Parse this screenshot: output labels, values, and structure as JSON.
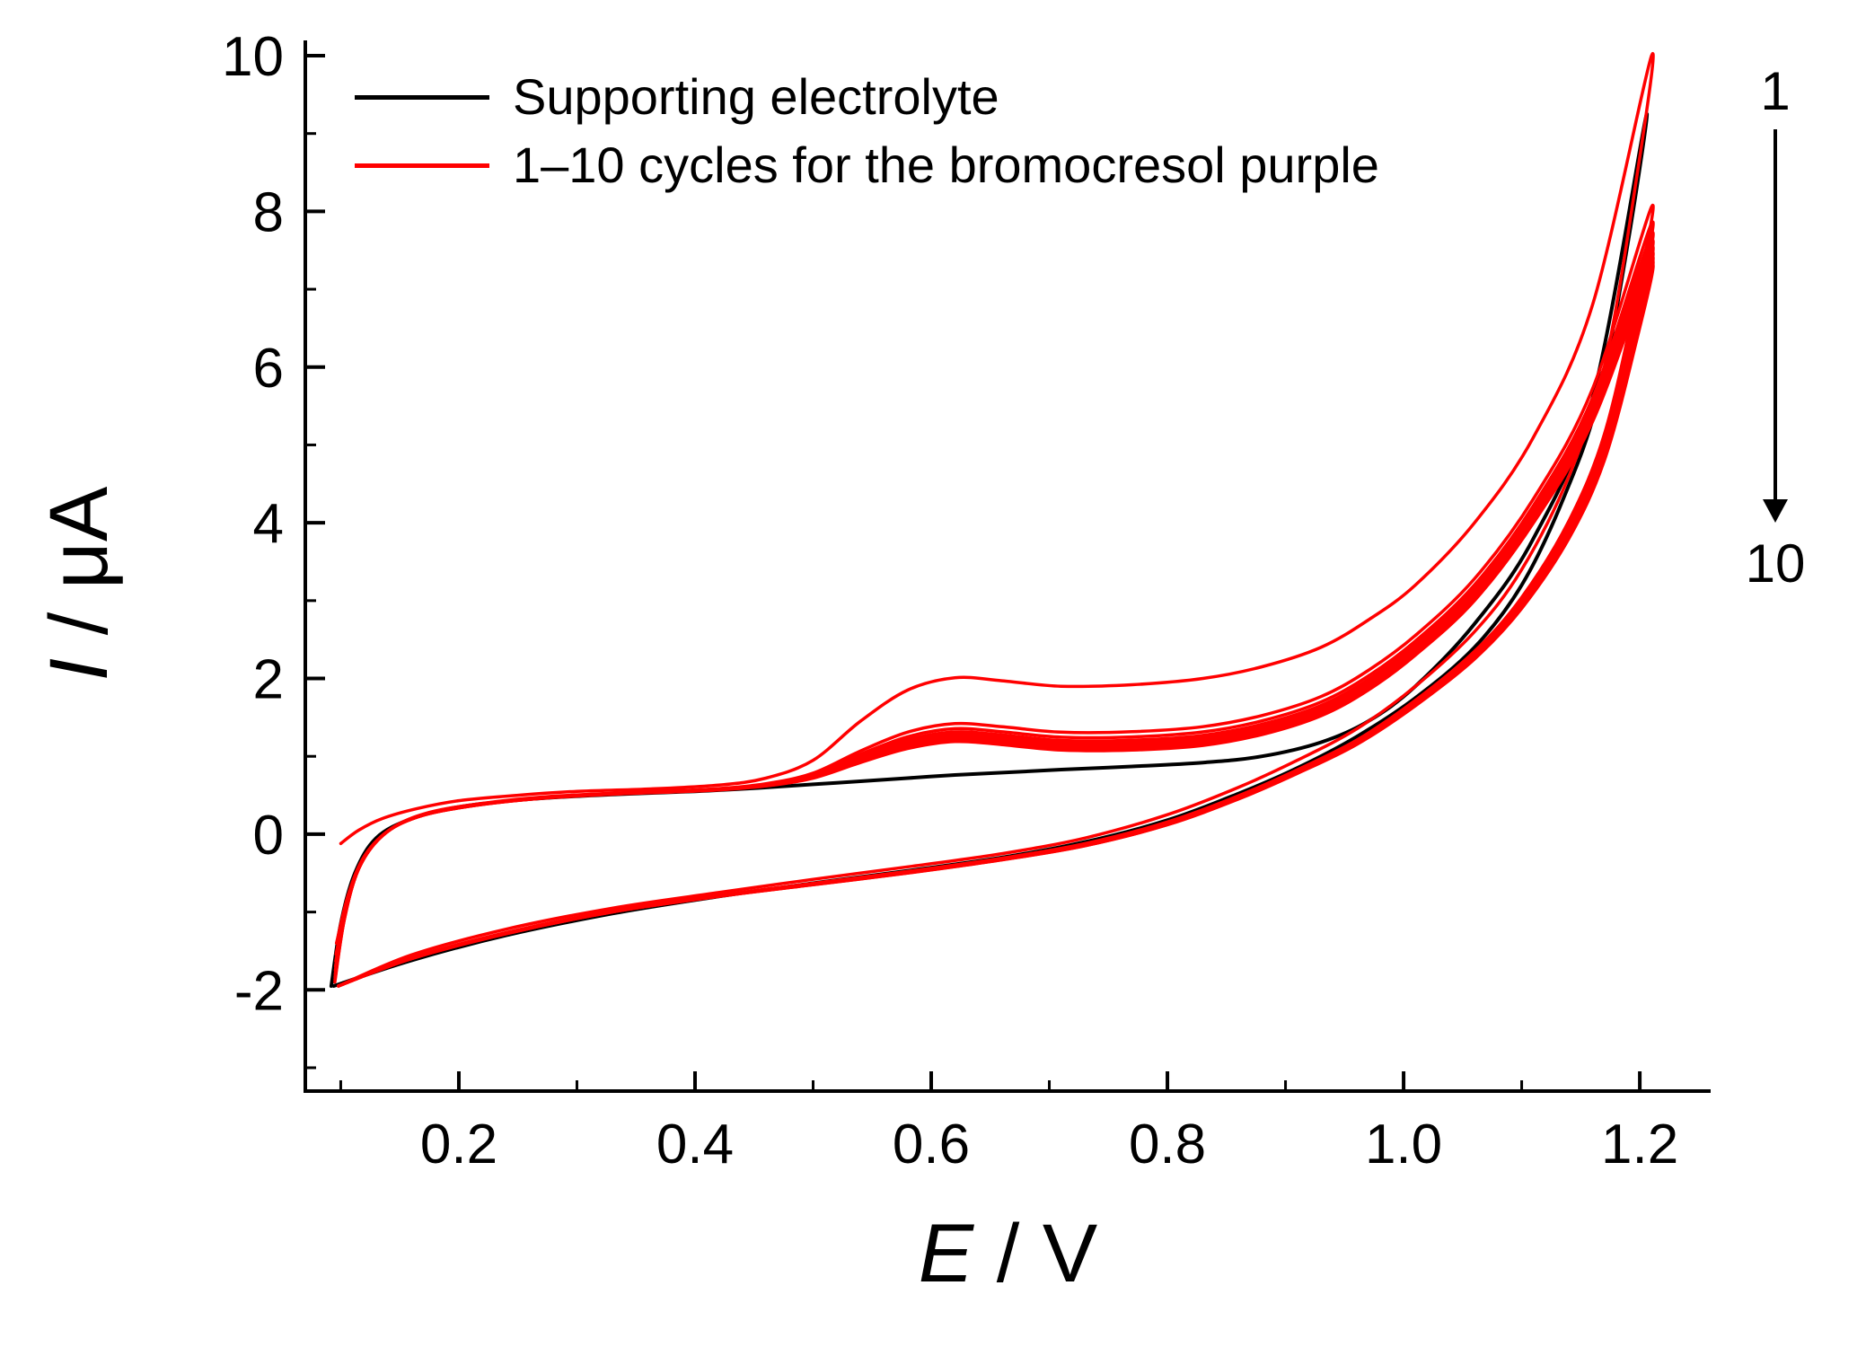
{
  "colors": {
    "background": "#ffffff",
    "axis": "#000000",
    "electrolyte": "#000000",
    "cycles": "#ff0000"
  },
  "chart_data": {
    "type": "line",
    "subtype": "cyclic-voltammogram",
    "title": "",
    "xlabel": "E / V",
    "ylabel": "I / μA",
    "xlabel_parts": {
      "symbol": "E",
      "units": " / V"
    },
    "ylabel_parts": {
      "symbol": "I",
      "units": " / μA"
    },
    "xlim": [
      0.07,
      1.26
    ],
    "ylim": [
      -3.3,
      10
    ],
    "x_ticks": [
      0.2,
      0.4,
      0.6,
      0.8,
      1.0,
      1.2
    ],
    "x_tick_labels": [
      "0.2",
      "0.4",
      "0.6",
      "0.8",
      "1.0",
      "1.2"
    ],
    "y_ticks": [
      -2,
      0,
      2,
      4,
      6,
      8,
      10
    ],
    "y_tick_labels": [
      "-2",
      "0",
      "2",
      "4",
      "6",
      "8",
      "10"
    ],
    "x_minor_step": 0.1,
    "y_minor_step": 1,
    "grid": false,
    "legend_position": "top-left-inside",
    "legend": [
      {
        "label": "Supporting electrolyte",
        "color": "#000000"
      },
      {
        "label": "1–10 cycles for the bromocresol purple",
        "color": "#ff0000"
      }
    ],
    "annotation": {
      "start_label": "1",
      "end_label": "10"
    },
    "series": [
      {
        "name": "Supporting electrolyte",
        "color": "#000000",
        "forward": [
          [
            0.092,
            -1.95
          ],
          [
            0.1,
            -1.15
          ],
          [
            0.112,
            -0.5
          ],
          [
            0.13,
            -0.05
          ],
          [
            0.16,
            0.2
          ],
          [
            0.2,
            0.35
          ],
          [
            0.26,
            0.45
          ],
          [
            0.33,
            0.51
          ],
          [
            0.4,
            0.55
          ],
          [
            0.46,
            0.6
          ],
          [
            0.5,
            0.64
          ],
          [
            0.54,
            0.68
          ],
          [
            0.58,
            0.72
          ],
          [
            0.62,
            0.76
          ],
          [
            0.66,
            0.79
          ],
          [
            0.71,
            0.83
          ],
          [
            0.77,
            0.87
          ],
          [
            0.83,
            0.92
          ],
          [
            0.88,
            1.0
          ],
          [
            0.93,
            1.18
          ],
          [
            0.97,
            1.45
          ],
          [
            1.01,
            1.9
          ],
          [
            1.06,
            2.7
          ],
          [
            1.11,
            3.8
          ],
          [
            1.16,
            5.6
          ],
          [
            1.205,
            9.2
          ]
        ],
        "reverse": [
          [
            1.205,
            9.2
          ],
          [
            1.19,
            7.6
          ],
          [
            1.165,
            5.6
          ],
          [
            1.135,
            4.3
          ],
          [
            1.1,
            3.2
          ],
          [
            1.06,
            2.4
          ],
          [
            1.01,
            1.75
          ],
          [
            0.96,
            1.25
          ],
          [
            0.91,
            0.85
          ],
          [
            0.86,
            0.52
          ],
          [
            0.8,
            0.18
          ],
          [
            0.73,
            -0.1
          ],
          [
            0.66,
            -0.3
          ],
          [
            0.58,
            -0.47
          ],
          [
            0.5,
            -0.63
          ],
          [
            0.42,
            -0.8
          ],
          [
            0.33,
            -1.02
          ],
          [
            0.24,
            -1.3
          ],
          [
            0.16,
            -1.62
          ],
          [
            0.094,
            -1.95
          ]
        ]
      },
      {
        "name": "1-10 cycles for the bromocresol purple",
        "color": "#ff0000",
        "cycle_count": 10,
        "convergence_exponent": 0.15,
        "first_cycle": {
          "forward": [
            [
              0.1,
              -0.12
            ],
            [
              0.115,
              0.05
            ],
            [
              0.135,
              0.2
            ],
            [
              0.165,
              0.33
            ],
            [
              0.2,
              0.43
            ],
            [
              0.25,
              0.5
            ],
            [
              0.3,
              0.55
            ],
            [
              0.36,
              0.58
            ],
            [
              0.42,
              0.63
            ],
            [
              0.46,
              0.72
            ],
            [
              0.5,
              0.95
            ],
            [
              0.54,
              1.45
            ],
            [
              0.58,
              1.85
            ],
            [
              0.62,
              2.01
            ],
            [
              0.66,
              1.97
            ],
            [
              0.71,
              1.9
            ],
            [
              0.77,
              1.92
            ],
            [
              0.83,
              2.0
            ],
            [
              0.88,
              2.15
            ],
            [
              0.93,
              2.4
            ],
            [
              0.97,
              2.75
            ],
            [
              1.01,
              3.2
            ],
            [
              1.06,
              4.0
            ],
            [
              1.11,
              5.1
            ],
            [
              1.16,
              6.8
            ],
            [
              1.21,
              10.0
            ]
          ],
          "reverse": [
            [
              1.21,
              10.0
            ],
            [
              1.195,
              8.2
            ],
            [
              1.17,
              6.0
            ],
            [
              1.14,
              4.6
            ],
            [
              1.1,
              3.4
            ],
            [
              1.06,
              2.6
            ],
            [
              1.01,
              1.9
            ],
            [
              0.96,
              1.35
            ],
            [
              0.91,
              0.95
            ],
            [
              0.86,
              0.6
            ],
            [
              0.8,
              0.25
            ],
            [
              0.73,
              -0.05
            ],
            [
              0.66,
              -0.25
            ],
            [
              0.58,
              -0.42
            ],
            [
              0.5,
              -0.58
            ],
            [
              0.42,
              -0.75
            ],
            [
              0.33,
              -0.95
            ],
            [
              0.24,
              -1.22
            ],
            [
              0.16,
              -1.55
            ],
            [
              0.098,
              -1.95
            ]
          ]
        },
        "last_cycle": {
          "forward": [
            [
              0.095,
              -1.9
            ],
            [
              0.103,
              -1.1
            ],
            [
              0.115,
              -0.45
            ],
            [
              0.135,
              -0.02
            ],
            [
              0.165,
              0.22
            ],
            [
              0.21,
              0.36
            ],
            [
              0.27,
              0.46
            ],
            [
              0.34,
              0.52
            ],
            [
              0.41,
              0.56
            ],
            [
              0.46,
              0.62
            ],
            [
              0.5,
              0.72
            ],
            [
              0.54,
              0.92
            ],
            [
              0.58,
              1.1
            ],
            [
              0.62,
              1.19
            ],
            [
              0.66,
              1.15
            ],
            [
              0.71,
              1.08
            ],
            [
              0.77,
              1.08
            ],
            [
              0.83,
              1.14
            ],
            [
              0.88,
              1.28
            ],
            [
              0.93,
              1.52
            ],
            [
              0.97,
              1.85
            ],
            [
              1.01,
              2.3
            ],
            [
              1.06,
              3.0
            ],
            [
              1.11,
              4.0
            ],
            [
              1.16,
              5.3
            ],
            [
              1.21,
              7.3
            ]
          ],
          "reverse": [
            [
              1.21,
              7.3
            ],
            [
              1.195,
              6.2
            ],
            [
              1.17,
              4.8
            ],
            [
              1.14,
              3.8
            ],
            [
              1.1,
              2.9
            ],
            [
              1.06,
              2.25
            ],
            [
              1.01,
              1.65
            ],
            [
              0.96,
              1.15
            ],
            [
              0.91,
              0.78
            ],
            [
              0.86,
              0.45
            ],
            [
              0.8,
              0.12
            ],
            [
              0.73,
              -0.15
            ],
            [
              0.66,
              -0.33
            ],
            [
              0.58,
              -0.5
            ],
            [
              0.5,
              -0.65
            ],
            [
              0.42,
              -0.8
            ],
            [
              0.33,
              -1.0
            ],
            [
              0.24,
              -1.28
            ],
            [
              0.16,
              -1.6
            ],
            [
              0.098,
              -1.95
            ]
          ]
        }
      }
    ]
  }
}
